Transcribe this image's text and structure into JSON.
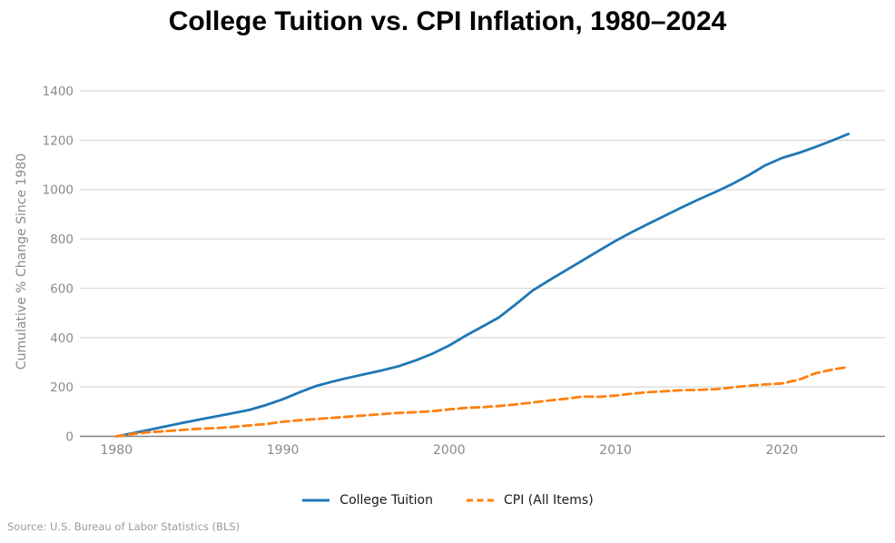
{
  "title": "College Tuition vs. CPI Inflation, 1980–2024",
  "source_note": "Source: U.S. Bureau of Labor Statistics (BLS)",
  "style_colors": {
    "tuition_line": "#1f77b4",
    "cpi_line": "#ff7f0e",
    "gridline": "#d9d9d9",
    "axis_spine": "#808080",
    "tick_label": "#8a8a8a",
    "axis_title": "#8a8a8a",
    "legend_text": "#1a1a1a",
    "title_text": "#000000",
    "source_text": "#9b9b9b"
  },
  "chart_data": {
    "type": "line",
    "title": "College Tuition vs. CPI Inflation, 1980–2024",
    "xlabel": "",
    "ylabel": "Cumulative % Change Since 1980",
    "x": [
      1980,
      1981,
      1982,
      1983,
      1984,
      1985,
      1986,
      1987,
      1988,
      1989,
      1990,
      1991,
      1992,
      1993,
      1994,
      1995,
      1996,
      1997,
      1998,
      1999,
      2000,
      2001,
      2002,
      2003,
      2004,
      2005,
      2006,
      2007,
      2008,
      2009,
      2010,
      2011,
      2012,
      2013,
      2014,
      2015,
      2016,
      2017,
      2018,
      2019,
      2020,
      2021,
      2022,
      2023,
      2024
    ],
    "series": [
      {
        "name": "College Tuition",
        "color": "#1f77b4",
        "style": "solid",
        "values": [
          0,
          13,
          27,
          41,
          55,
          68,
          81,
          94,
          107,
          127,
          150,
          178,
          204,
          222,
          238,
          253,
          268,
          285,
          308,
          335,
          368,
          408,
          445,
          482,
          535,
          590,
          632,
          672,
          712,
          752,
          792,
          828,
          862,
          895,
          928,
          960,
          990,
          1022,
          1058,
          1098,
          1128,
          1148,
          1172,
          1198,
          1225
        ]
      },
      {
        "name": "CPI (All Items)",
        "color": "#ff7f0e",
        "style": "dashed",
        "values": [
          0,
          10,
          17,
          21,
          26,
          31,
          33,
          38,
          44,
          50,
          59,
          65,
          70,
          75,
          80,
          85,
          90,
          95,
          98,
          102,
          109,
          115,
          118,
          123,
          129,
          137,
          145,
          152,
          161,
          160,
          165,
          173,
          179,
          183,
          187,
          188,
          191,
          198,
          205,
          210,
          214,
          229,
          255,
          270,
          281
        ]
      }
    ],
    "xticks": [
      1980,
      1990,
      2000,
      2010,
      2020
    ],
    "yticks": [
      0,
      200,
      400,
      600,
      800,
      1000,
      1200,
      1400
    ],
    "xlim": [
      1977.8,
      2026.2
    ],
    "ylim": [
      0,
      1448
    ],
    "grid": "horizontal",
    "legend_position": "bottom"
  }
}
